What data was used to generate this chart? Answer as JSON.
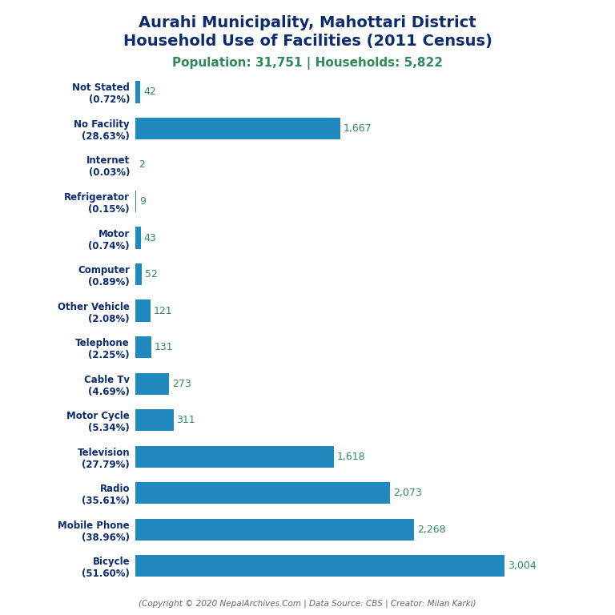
{
  "title_line1": "Aurahi Municipality, Mahottari District",
  "title_line2": "Household Use of Facilities (2011 Census)",
  "subtitle": "Population: 31,751 | Households: 5,822",
  "footer": "(Copyright © 2020 NepalArchives.Com | Data Source: CBS | Creator: Milan Karki)",
  "categories": [
    "Not Stated\n(0.72%)",
    "No Facility\n(28.63%)",
    "Internet\n(0.03%)",
    "Refrigerator\n(0.15%)",
    "Motor\n(0.74%)",
    "Computer\n(0.89%)",
    "Other Vehicle\n(2.08%)",
    "Telephone\n(2.25%)",
    "Cable Tv\n(4.69%)",
    "Motor Cycle\n(5.34%)",
    "Television\n(27.79%)",
    "Radio\n(35.61%)",
    "Mobile Phone\n(38.96%)",
    "Bicycle\n(51.60%)"
  ],
  "values": [
    42,
    1667,
    2,
    9,
    43,
    52,
    121,
    131,
    273,
    311,
    1618,
    2073,
    2268,
    3004
  ],
  "bar_color": "#2089c0",
  "title_color": "#0d2c6e",
  "subtitle_color": "#2e8b57",
  "value_color": "#2e8b57",
  "footer_color": "#666666",
  "background_color": "#ffffff",
  "figsize": [
    7.68,
    7.68
  ],
  "dpi": 100
}
